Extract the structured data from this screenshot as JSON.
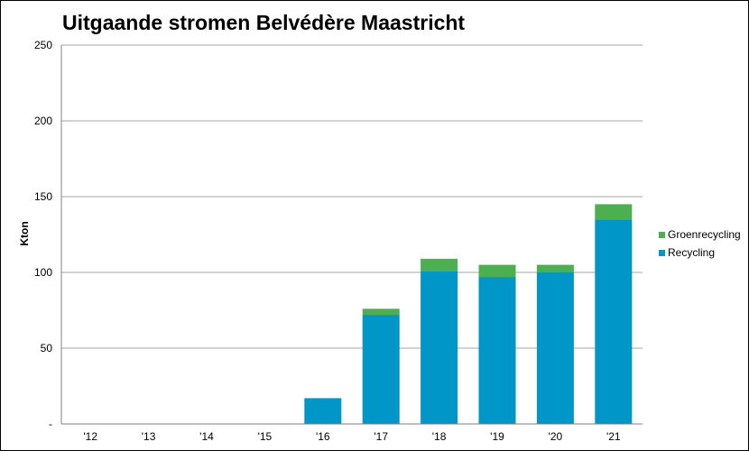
{
  "chart_data": {
    "type": "bar",
    "stacked": true,
    "title": "Uitgaande stromen Belvédère Maastricht",
    "xlabel": "",
    "ylabel": "Kton",
    "ylim": [
      0,
      250
    ],
    "yticks": [
      0,
      50,
      100,
      150,
      200,
      250
    ],
    "ytick_labels": [
      "-",
      "50",
      "100",
      "150",
      "200",
      "250"
    ],
    "grid": true,
    "legend_position": "right",
    "categories": [
      "'12",
      "'13",
      "'14",
      "'15",
      "'16",
      "'17",
      "'18",
      "'19",
      "'20",
      "'21"
    ],
    "series": [
      {
        "name": "Recycling",
        "color": "#0096C8",
        "values": [
          0,
          0,
          0,
          0,
          17,
          72,
          101,
          97,
          100,
          135
        ]
      },
      {
        "name": "Groenrecycling",
        "color": "#4CAF50",
        "values": [
          0,
          0,
          0,
          0,
          0,
          4,
          8,
          8,
          5,
          10
        ]
      }
    ]
  }
}
